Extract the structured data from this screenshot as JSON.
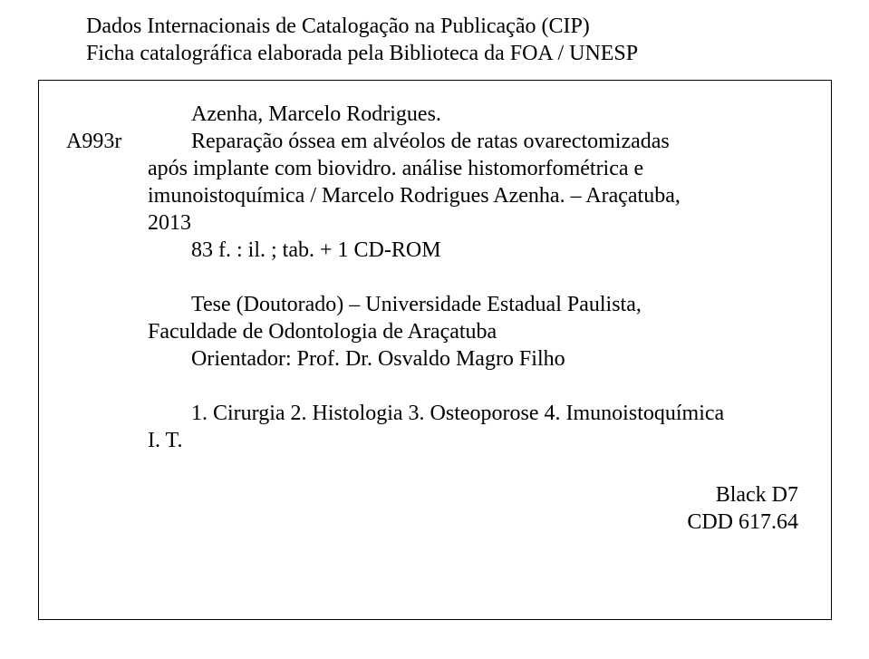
{
  "header": {
    "line1": "Dados Internacionais de Catalogação na Publicação (CIP)",
    "line2": "Ficha catalográfica elaborada pela Biblioteca da FOA / UNESP"
  },
  "entry": {
    "code": "A993r",
    "author_line": "Azenha, Marcelo Rodrigues.",
    "desc_line1": "Reparação óssea em alvéolos de ratas ovarectomizadas",
    "desc_line2": "após implante com biovidro. análise histomorfométrica e",
    "desc_line3": "imunoistoquímica / Marcelo Rodrigues Azenha. – Araçatuba,",
    "desc_line4": "2013",
    "desc_line5": "83 f. : il. ; tab. + 1 CD-ROM",
    "thesis_line1": "Tese (Doutorado) – Universidade Estadual Paulista,",
    "thesis_line2": "Faculdade de Odontologia de Araçatuba",
    "advisor_line": "Orientador: Prof. Dr. Osvaldo Magro Filho",
    "subjects_line": "1. Cirurgia 2. Histologia 3. Osteoporose 4. Imunoistoquímica",
    "it_line": "I. T."
  },
  "classification": {
    "black": "Black D7",
    "cdd": "CDD 617.64"
  },
  "colors": {
    "text": "#000000",
    "background": "#ffffff",
    "border": "#000000"
  },
  "typography": {
    "font_family": "Times New Roman",
    "body_fontsize_pt": 18
  }
}
